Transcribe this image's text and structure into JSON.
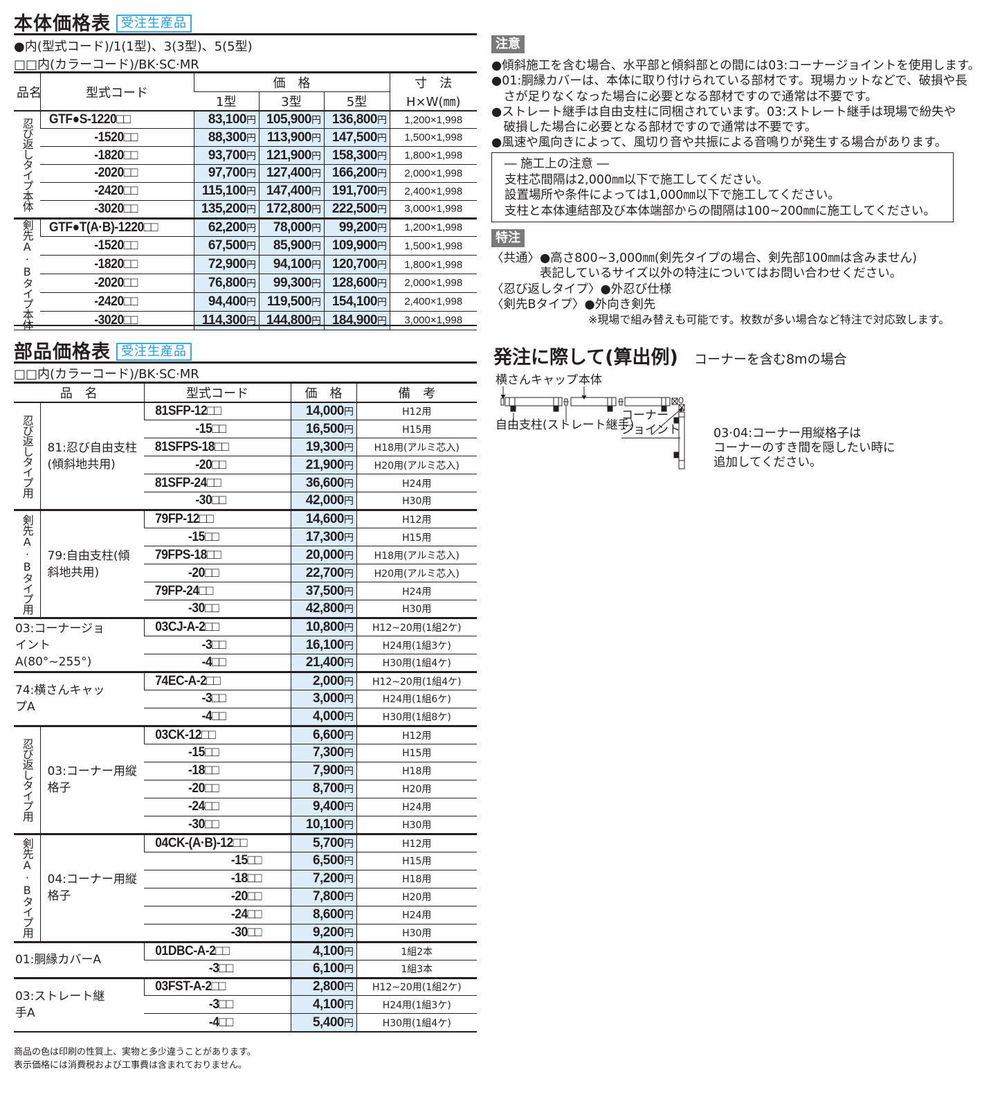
{
  "main": {
    "title": "本体価格表",
    "tag": "受注生産品",
    "legend1": "●内(型式コード)/1(1型)、3(3型)、5(5型)",
    "legend2": "□□内(カラーコード)/BK·SC·MR",
    "headers": {
      "name": "品名",
      "code": "型式コード",
      "price": "価　格",
      "t1": "1型",
      "t3": "3型",
      "t5": "5型",
      "dim": "寸　法",
      "dim_unit": "H×W(㎜)"
    },
    "currency": "円",
    "groups": [
      {
        "label": "忍び返しタイプ本体",
        "rows": [
          {
            "code": "GTF●S-1220□□",
            "p1": "83,100",
            "p3": "105,900",
            "p5": "136,800",
            "dim": "1,200×1,998"
          },
          {
            "code": "-1520□□",
            "p1": "88,300",
            "p3": "113,900",
            "p5": "147,500",
            "dim": "1,500×1,998"
          },
          {
            "code": "-1820□□",
            "p1": "93,700",
            "p3": "121,900",
            "p5": "158,300",
            "dim": "1,800×1,998"
          },
          {
            "code": "-2020□□",
            "p1": "97,700",
            "p3": "127,400",
            "p5": "166,200",
            "dim": "2,000×1,998"
          },
          {
            "code": "-2420□□",
            "p1": "115,100",
            "p3": "147,400",
            "p5": "191,700",
            "dim": "2,400×1,998"
          },
          {
            "code": "-3020□□",
            "p1": "135,200",
            "p3": "172,800",
            "p5": "222,500",
            "dim": "3,000×1,998"
          }
        ]
      },
      {
        "label": "剣先A·Bタイプ本体",
        "rows": [
          {
            "code": "GTF●T(A·B)-1220□□",
            "p1": "62,200",
            "p3": "78,000",
            "p5": "99,200",
            "dim": "1,200×1,998"
          },
          {
            "code": "-1520□□",
            "p1": "67,500",
            "p3": "85,900",
            "p5": "109,900",
            "dim": "1,500×1,998"
          },
          {
            "code": "-1820□□",
            "p1": "72,900",
            "p3": "94,100",
            "p5": "120,700",
            "dim": "1,800×1,998"
          },
          {
            "code": "-2020□□",
            "p1": "76,800",
            "p3": "99,300",
            "p5": "128,600",
            "dim": "2,000×1,998"
          },
          {
            "code": "-2420□□",
            "p1": "94,400",
            "p3": "119,500",
            "p5": "154,100",
            "dim": "2,400×1,998"
          },
          {
            "code": "-3020□□",
            "p1": "114,300",
            "p3": "144,800",
            "p5": "184,900",
            "dim": "3,000×1,998"
          }
        ]
      }
    ]
  },
  "parts": {
    "title": "部品価格表",
    "tag": "受注生産品",
    "legend": "□□内(カラーコード)/BK·SC·MR",
    "headers": {
      "name": "品　名",
      "code": "型式コード",
      "price": "価　格",
      "remark": "備　考"
    },
    "currency": "円",
    "groups": [
      {
        "type": "忍び返しタイプ用",
        "name": "81:忍び自由支柱(傾斜地共用)",
        "rows": [
          {
            "code": "81SFP-12□□",
            "price": "14,000",
            "remark": "H12用"
          },
          {
            "code": "-15□□",
            "price": "16,500",
            "remark": "H15用"
          },
          {
            "code": "81SFPS-18□□",
            "price": "19,300",
            "remark": "H18用(アルミ芯入)"
          },
          {
            "code": "-20□□",
            "price": "21,900",
            "remark": "H20用(アルミ芯入)"
          },
          {
            "code": "81SFP-24□□",
            "price": "36,600",
            "remark": "H24用"
          },
          {
            "code": "-30□□",
            "price": "42,000",
            "remark": "H30用"
          }
        ]
      },
      {
        "type": "剣先A·Bタイプ用",
        "name": "79:自由支柱(傾斜地共用)",
        "rows": [
          {
            "code": "79FP-12□□",
            "price": "14,600",
            "remark": "H12用"
          },
          {
            "code": "-15□□",
            "price": "17,300",
            "remark": "H15用"
          },
          {
            "code": "79FPS-18□□",
            "price": "20,000",
            "remark": "H18用(アルミ芯入)"
          },
          {
            "code": "-20□□",
            "price": "22,700",
            "remark": "H20用(アルミ芯入)"
          },
          {
            "code": "79FP-24□□",
            "price": "37,500",
            "remark": "H24用"
          },
          {
            "code": "-30□□",
            "price": "42,800",
            "remark": "H30用"
          }
        ]
      },
      {
        "type": "",
        "name": "03:コーナージョイントA(80°~255°)",
        "rows": [
          {
            "code": "03CJ-A-2□□",
            "price": "10,800",
            "remark": "H12~20用(1組2ケ)"
          },
          {
            "code": "-3□□",
            "price": "16,100",
            "remark": "H24用(1組3ケ)"
          },
          {
            "code": "-4□□",
            "price": "21,400",
            "remark": "H30用(1組4ケ)"
          }
        ]
      },
      {
        "type": "",
        "name": "74:横さんキャップA",
        "rows": [
          {
            "code": "74EC-A-2□□",
            "price": "2,000",
            "remark": "H12~20用(1組4ケ)"
          },
          {
            "code": "-3□□",
            "price": "3,000",
            "remark": "H24用(1組6ケ)"
          },
          {
            "code": "-4□□",
            "price": "4,000",
            "remark": "H30用(1組8ケ)"
          }
        ]
      },
      {
        "type": "忍び返しタイプ用",
        "name": "03:コーナー用縦格子",
        "rows": [
          {
            "code": "03CK-12□□",
            "price": "6,600",
            "remark": "H12用"
          },
          {
            "code": "-15□□",
            "price": "7,300",
            "remark": "H15用"
          },
          {
            "code": "-18□□",
            "price": "7,900",
            "remark": "H18用"
          },
          {
            "code": "-20□□",
            "price": "8,700",
            "remark": "H20用"
          },
          {
            "code": "-24□□",
            "price": "9,400",
            "remark": "H24用"
          },
          {
            "code": "-30□□",
            "price": "10,100",
            "remark": "H30用"
          }
        ]
      },
      {
        "type": "剣先A·Bタイプ用",
        "name": "04:コーナー用縦格子",
        "rows": [
          {
            "code": "04CK-(A·B)-12□□",
            "price": "5,700",
            "remark": "H12用"
          },
          {
            "code": "-15□□",
            "price": "6,500",
            "remark": "H15用"
          },
          {
            "code": "-18□□",
            "price": "7,200",
            "remark": "H18用"
          },
          {
            "code": "-20□□",
            "price": "7,800",
            "remark": "H20用"
          },
          {
            "code": "-24□□",
            "price": "8,600",
            "remark": "H24用"
          },
          {
            "code": "-30□□",
            "price": "9,200",
            "remark": "H30用"
          }
        ]
      },
      {
        "type": "",
        "name": "01:胴縁カバーA",
        "rows": [
          {
            "code": "01DBC-A-2□□",
            "price": "4,100",
            "remark": "1組2本"
          },
          {
            "code": "-3□□",
            "price": "6,100",
            "remark": "1組3本"
          }
        ]
      },
      {
        "type": "",
        "name": "03:ストレート継手A",
        "rows": [
          {
            "code": "03FST-A-2□□",
            "price": "2,800",
            "remark": "H12~20用(1組2ケ)"
          },
          {
            "code": "-3□□",
            "price": "4,100",
            "remark": "H24用(1組3ケ)"
          },
          {
            "code": "-4□□",
            "price": "5,400",
            "remark": "H30用(1組4ケ)"
          }
        ]
      }
    ]
  },
  "caution": {
    "badge": "注意",
    "bullets": [
      "●傾斜施工を含む場合、水平部と傾斜部との間には03:コーナージョイントを使用します。",
      "●01:胴縁カバーは、本体に取り付けられている部材です。現場カットなどで、破損や長",
      "　さが足りなくなった場合に必要となる部材ですので通常は不要です。",
      "●ストレート継手は自由支柱に同梱されています。03:ストレート継手は現場で紛失や",
      "　破損した場合に必要となる部材ですので通常は不要です。",
      "●風速や風向きによって、風切り音や共振による音鳴りが発生する場合があります。"
    ],
    "box_title": "― 施工上の注意 ―",
    "box_lines": [
      "支柱芯間隔は2,000㎜以下で施工してください。",
      "設置場所や条件によっては1,000㎜以下で施工してください。",
      "支柱と本体連結部及び本体端部からの間隔は100~200㎜に施工してください。"
    ]
  },
  "special": {
    "badge": "特注",
    "lines": [
      "〈共通〉●高さ800~3,000㎜(剣先タイプの場合、剣先部100㎜は含みません)",
      "　　　　表記しているサイズ以外の特注についてはお問い合わせください。",
      "〈忍び返しタイプ〉●外忍び仕様",
      "〈剣先Bタイプ〉●外向き剣先",
      "※現場で組み替えも可能です。枚数が多い場合など特注で対応致します。"
    ]
  },
  "order": {
    "title": "発注に際して(算出例)",
    "subtitle": "コーナーを含む8mの場合",
    "labels": {
      "cap": "横さんキャップ",
      "body": "本体",
      "post": "自由支柱(ストレート継手)",
      "joint1": "コーナー",
      "joint2": "ジョイント"
    },
    "note": [
      "03·04:コーナー用縦格子は",
      "コーナーのすき間を隠したい時に",
      "追加してください。"
    ]
  },
  "footer": [
    "商品の色は印刷の性質上、実物と多少違うことがあります。",
    "表示価格には消費税および工事費は含まれておりません。"
  ]
}
